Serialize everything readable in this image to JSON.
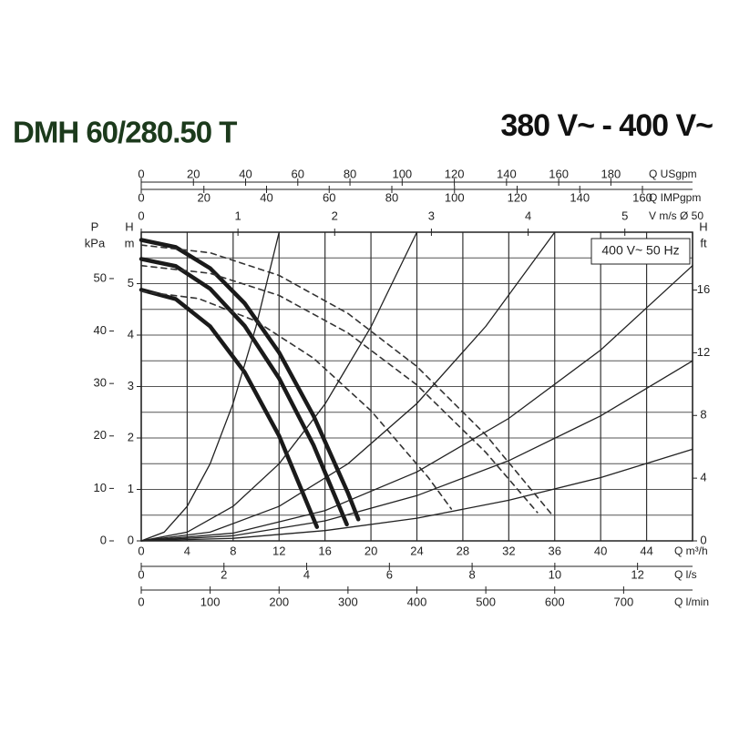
{
  "chart_data": {
    "type": "line",
    "title": "DMH 60/280.50 T",
    "subtitle": "380 V~ - 400 V~",
    "annotation": "400 V~ 50 Hz",
    "xlabel": "Q m³/h",
    "xlim": [
      0,
      48
    ],
    "xticks": [
      0,
      4,
      8,
      12,
      16,
      20,
      24,
      28,
      32,
      36,
      40,
      44
    ],
    "x_gridlines": [
      0,
      4,
      8,
      12,
      16,
      20,
      24,
      28,
      32,
      36,
      40,
      44,
      48
    ],
    "ylabel": [
      "H",
      "m"
    ],
    "ylim": [
      0,
      6
    ],
    "yticks": [
      0,
      1,
      2,
      3,
      4,
      5
    ],
    "y_gridlines": [
      0,
      0.5,
      1,
      1.5,
      2,
      2.5,
      3,
      3.5,
      4,
      4.5,
      5,
      5.5,
      6
    ],
    "extra_x_axes": [
      {
        "side": "top",
        "label": "Q USgpm",
        "lim": [
          0,
          211.3
        ],
        "ticks": [
          0,
          20,
          40,
          60,
          80,
          100,
          120,
          140,
          160,
          180
        ]
      },
      {
        "side": "top",
        "label": "Q IMPgpm",
        "lim": [
          0,
          176
        ],
        "ticks": [
          0,
          20,
          40,
          60,
          80,
          100,
          120,
          140,
          160
        ]
      },
      {
        "side": "top",
        "label": "V m/s Ø 50",
        "lim": [
          0,
          5.7
        ],
        "ticks": [
          0,
          1,
          2,
          3,
          4,
          5
        ]
      },
      {
        "side": "bottom",
        "label": "Q l/s",
        "lim": [
          0,
          13.33
        ],
        "ticks": [
          0,
          2,
          4,
          6,
          8,
          10,
          12
        ]
      },
      {
        "side": "bottom",
        "label": "Q l/min",
        "lim": [
          0,
          800
        ],
        "ticks": [
          0,
          100,
          200,
          300,
          400,
          500,
          600,
          700
        ]
      }
    ],
    "extra_y_axes": [
      {
        "side": "left",
        "label": [
          "P",
          "kPa"
        ],
        "lim": [
          0,
          58.84
        ],
        "ticks": [
          0,
          10,
          20,
          30,
          40,
          50
        ]
      },
      {
        "side": "right",
        "label": [
          "H",
          "ft"
        ],
        "lim": [
          0,
          19.69
        ],
        "ticks": [
          0,
          4,
          8,
          12,
          16
        ]
      }
    ],
    "series": [
      {
        "style": "heavy",
        "color": "#1a1a1a",
        "x": [
          0,
          3,
          6,
          9,
          12,
          15,
          18,
          18.9
        ],
        "values": [
          5.85,
          5.71,
          5.3,
          4.62,
          3.66,
          2.43,
          0.93,
          0.42
        ]
      },
      {
        "style": "heavy",
        "color": "#1a1a1a",
        "x": [
          0,
          3,
          6,
          9,
          12,
          15,
          17.9
        ],
        "values": [
          5.48,
          5.34,
          4.9,
          4.18,
          3.16,
          1.86,
          0.32
        ]
      },
      {
        "style": "heavy",
        "color": "#1a1a1a",
        "x": [
          0,
          3,
          6,
          9,
          12,
          15.3
        ],
        "values": [
          4.88,
          4.7,
          4.17,
          3.28,
          2.04,
          0.27
        ]
      },
      {
        "style": "dashed",
        "color": "#333333",
        "x": [
          0,
          6,
          12,
          18,
          24,
          30,
          35.8
        ],
        "values": [
          5.75,
          5.6,
          5.16,
          4.42,
          3.39,
          2.06,
          0.5
        ]
      },
      {
        "style": "dashed",
        "color": "#333333",
        "x": [
          0,
          6,
          12,
          18,
          24,
          30,
          34.5
        ],
        "values": [
          5.35,
          5.2,
          4.77,
          4.04,
          3.03,
          1.72,
          0.55
        ]
      },
      {
        "style": "dashed",
        "color": "#333333",
        "x": [
          0,
          5,
          10,
          15,
          20,
          25,
          27
        ],
        "values": [
          4.85,
          4.71,
          4.27,
          3.55,
          2.53,
          1.23,
          0.62
        ]
      },
      {
        "style": "thin",
        "color": "#222222",
        "x": [
          0,
          2,
          4,
          6,
          8,
          10,
          12
        ],
        "values": [
          0,
          0.17,
          0.67,
          1.5,
          2.67,
          4.17,
          6.0
        ]
      },
      {
        "style": "thin",
        "color": "#222222",
        "x": [
          0,
          4,
          8,
          12,
          16,
          20,
          24
        ],
        "values": [
          0,
          0.17,
          0.67,
          1.5,
          2.66,
          4.16,
          6.0
        ]
      },
      {
        "style": "thin",
        "color": "#222222",
        "x": [
          0,
          6,
          12,
          18,
          24,
          30,
          36
        ],
        "values": [
          0,
          0.17,
          0.67,
          1.5,
          2.67,
          4.17,
          6.0
        ]
      },
      {
        "style": "thin",
        "color": "#222222",
        "x": [
          0,
          8,
          16,
          24,
          32,
          40,
          48
        ],
        "values": [
          0,
          0.15,
          0.59,
          1.34,
          2.38,
          3.71,
          5.35
        ]
      },
      {
        "style": "thin",
        "color": "#222222",
        "x": [
          0,
          8,
          16,
          24,
          32,
          40,
          48
        ],
        "values": [
          0,
          0.1,
          0.39,
          0.88,
          1.56,
          2.43,
          3.5
        ]
      },
      {
        "style": "thin",
        "color": "#222222",
        "x": [
          0,
          8,
          16,
          24,
          32,
          40,
          48
        ],
        "values": [
          0,
          0.05,
          0.2,
          0.44,
          0.79,
          1.23,
          1.78
        ]
      }
    ]
  }
}
